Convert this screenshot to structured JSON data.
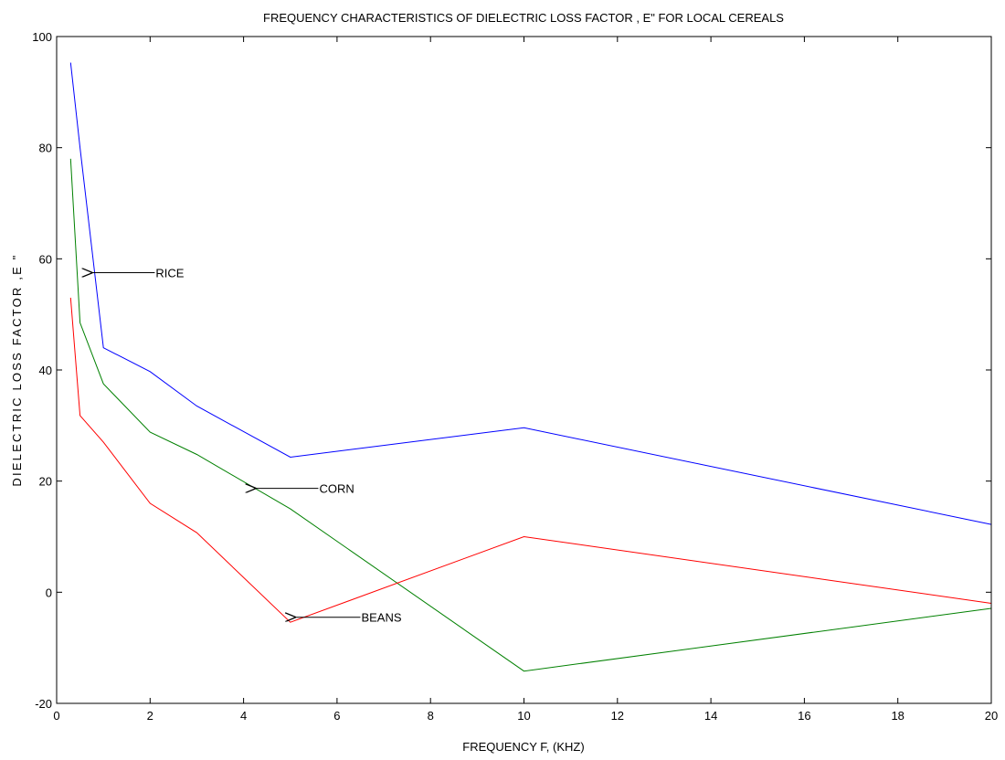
{
  "chart_data": {
    "type": "line",
    "title": "FREQUENCY CHARACTERISTICS OF DIELECTRIC LOSS FACTOR , E\" FOR LOCAL CEREALS",
    "xlabel": "FREQUENCY F, (KHZ)",
    "ylabel": "DIELECTRIC LOSS FACTOR ,E \"",
    "xlim": [
      0,
      20
    ],
    "ylim": [
      -20,
      100
    ],
    "xticks": [
      0,
      2,
      4,
      6,
      8,
      10,
      12,
      14,
      16,
      18,
      20
    ],
    "yticks": [
      -20,
      0,
      20,
      40,
      60,
      80,
      100
    ],
    "grid": false,
    "x": [
      0.3,
      0.5,
      1,
      2,
      3,
      5,
      10,
      20
    ],
    "series": [
      {
        "name": "RICE",
        "color": "#0000ff",
        "values": [
          95.3,
          80.0,
          44.0,
          39.7,
          33.5,
          24.3,
          29.6,
          12.2
        ]
      },
      {
        "name": "CORN",
        "color": "#008000",
        "values": [
          78.0,
          48.5,
          37.5,
          28.8,
          24.8,
          15.0,
          -14.2,
          -2.9
        ]
      },
      {
        "name": "BEANS",
        "color": "#ff0000",
        "values": [
          53.0,
          31.8,
          27.0,
          16.0,
          10.7,
          -5.4,
          10.0,
          -2.0
        ]
      }
    ],
    "annotations": [
      {
        "text": "RICE",
        "arrow_to": [
          0.75,
          57.5
        ],
        "text_at": [
          2.1,
          57.5
        ]
      },
      {
        "text": "CORN",
        "arrow_to": [
          4.25,
          18.7
        ],
        "text_at": [
          5.6,
          18.7
        ]
      },
      {
        "text": "BEANS",
        "arrow_to": [
          5.1,
          -4.5
        ],
        "text_at": [
          6.5,
          -4.5
        ]
      }
    ]
  }
}
